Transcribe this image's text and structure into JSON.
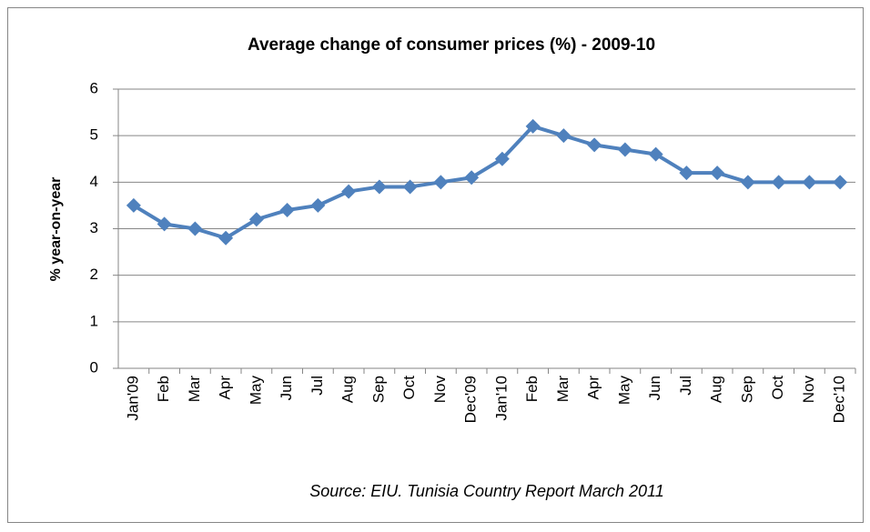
{
  "chart_data": {
    "type": "line",
    "title": "Average change of consumer prices (%) - 2009-10",
    "y_label": "% year-on-year",
    "source": "Source: EIU. Tunisia Country Report March 2011",
    "categories": [
      "Jan'09",
      "Feb",
      "Mar",
      "Apr",
      "May",
      "Jun",
      "Jul",
      "Aug",
      "Sep",
      "Oct",
      "Nov",
      "Dec'09",
      "Jan'10",
      "Feb",
      "Mar",
      "Apr",
      "May",
      "Jun",
      "Jul",
      "Aug",
      "Sep",
      "Oct",
      "Nov",
      "Dec'10"
    ],
    "values": [
      3.5,
      3.1,
      3.0,
      2.8,
      3.2,
      3.4,
      3.5,
      3.8,
      3.9,
      3.9,
      4.0,
      4.1,
      4.5,
      5.2,
      5.0,
      4.8,
      4.7,
      4.6,
      4.2,
      4.2,
      4.0,
      4.0,
      4.0,
      4.0
    ],
    "color": "#4f81bd",
    "ylim": [
      0,
      6
    ],
    "yticks": [
      0,
      1,
      2,
      3,
      4,
      5,
      6
    ],
    "grid": true
  }
}
